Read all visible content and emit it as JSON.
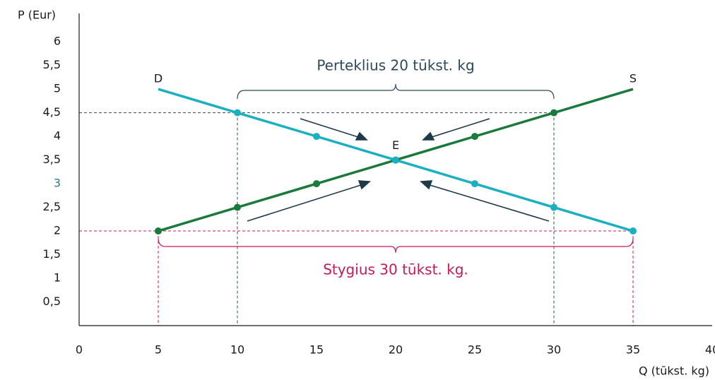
{
  "chart_data": {
    "type": "line",
    "y_label": "P (Eur)",
    "x_label": "Q (tūkst. kg)",
    "xlim": [
      0,
      40
    ],
    "xticks": [
      0,
      5,
      10,
      15,
      20,
      25,
      30,
      35,
      40
    ],
    "ylim": [
      0,
      6.6
    ],
    "yticks": [
      {
        "value": 0.5,
        "label": "0,5"
      },
      1,
      {
        "value": 1.5,
        "label": "1,5"
      },
      2,
      {
        "value": 2.5,
        "label": "2,5"
      },
      3,
      {
        "value": 3.5,
        "label": "3,5"
      },
      4,
      {
        "value": 4.5,
        "label": "4,5"
      },
      5,
      {
        "value": 5.5,
        "label": "5,5"
      },
      6
    ],
    "x": [
      5,
      10,
      15,
      20,
      25,
      30,
      35
    ],
    "series": [
      {
        "name": "D",
        "color": "#1ab0c0",
        "values": [
          5,
          4.5,
          4,
          3.5,
          3,
          2.5,
          2
        ]
      },
      {
        "name": "S",
        "color": "#1a7a3c",
        "values": [
          2,
          2.5,
          3,
          3.5,
          4,
          4.5,
          5
        ]
      }
    ],
    "equilibrium": {
      "label": "E",
      "x": 20,
      "y": 3.5
    },
    "surplus": {
      "text": "Perteklius 20 tūkst. kg",
      "price": 4.5,
      "q": [
        10,
        30
      ],
      "color": "#2c4a5a"
    },
    "shortage": {
      "text": "Stygius 30 tūkst. kg.",
      "price": 2,
      "q": [
        5,
        35
      ],
      "color": "#c8185a"
    }
  }
}
